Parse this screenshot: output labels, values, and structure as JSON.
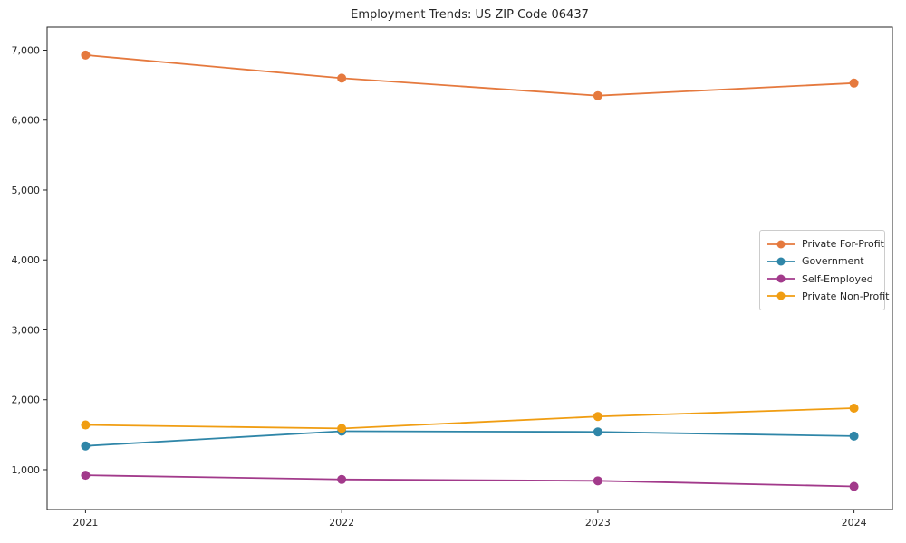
{
  "title": "Employment Trends: US ZIP Code 06437",
  "chart_data": {
    "type": "line",
    "title": "Employment Trends: US ZIP Code 06437",
    "xlabel": "",
    "ylabel": "",
    "categories": [
      "2021",
      "2022",
      "2023",
      "2024"
    ],
    "x": [
      2021,
      2022,
      2023,
      2024
    ],
    "series": [
      {
        "name": "Private For-Profit",
        "color": "#e5793e",
        "values": [
          6930,
          6600,
          6350,
          6530
        ]
      },
      {
        "name": "Government",
        "color": "#2f86a8",
        "values": [
          1340,
          1550,
          1540,
          1480
        ]
      },
      {
        "name": "Self-Employed",
        "color": "#a23a8b",
        "values": [
          920,
          860,
          840,
          760
        ]
      },
      {
        "name": "Private Non-Profit",
        "color": "#f09d12",
        "values": [
          1640,
          1590,
          1760,
          1880
        ]
      }
    ],
    "yticks": [
      {
        "value": 1000,
        "label": "1,000"
      },
      {
        "value": 2000,
        "label": "2,000"
      },
      {
        "value": 3000,
        "label": "3,000"
      },
      {
        "value": 4000,
        "label": "4,000"
      },
      {
        "value": 5000,
        "label": "5,000"
      },
      {
        "value": 6000,
        "label": "6,000"
      },
      {
        "value": 7000,
        "label": "7,000"
      }
    ],
    "ylim": [
      430,
      7330
    ],
    "xlim": [
      2020.85,
      2024.15
    ],
    "grid": false,
    "legend_position": "center-right",
    "marker": "circle",
    "line_width": 1.8,
    "marker_radius": 5,
    "axis_color": "#262626",
    "background": "#ffffff"
  }
}
